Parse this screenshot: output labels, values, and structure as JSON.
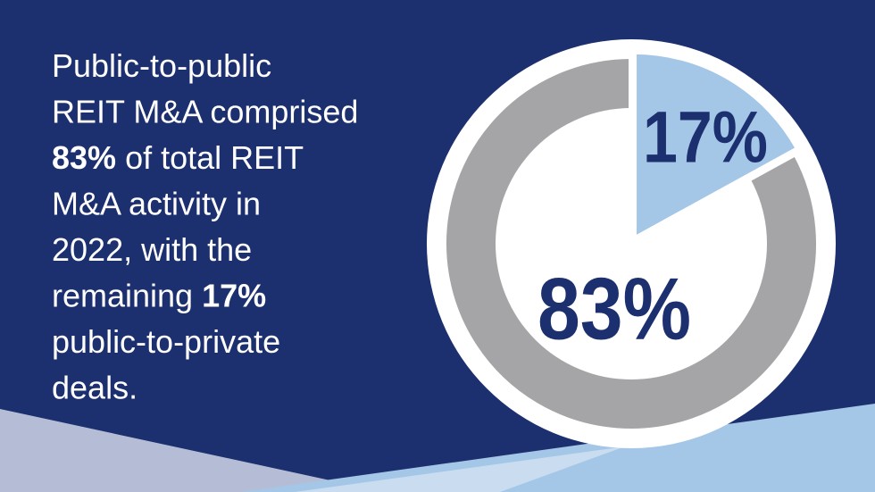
{
  "chart_data": {
    "type": "pie",
    "text_lines": [
      [
        {
          "text": "Public-to-public",
          "bold": false
        }
      ],
      [
        {
          "text": "REIT M&A comprised",
          "bold": false
        }
      ],
      [
        {
          "text": "83%",
          "bold": true
        },
        {
          "text": " of total REIT",
          "bold": false
        }
      ],
      [
        {
          "text": "M&A activity in",
          "bold": false
        }
      ],
      [
        {
          "text": "2022, with the",
          "bold": false
        }
      ],
      [
        {
          "text": "remaining ",
          "bold": false
        },
        {
          "text": "17%",
          "bold": true
        }
      ],
      [
        {
          "text": "public-to-private",
          "bold": false
        }
      ],
      [
        {
          "text": "deals.",
          "bold": false
        }
      ]
    ],
    "values": [
      17,
      83
    ],
    "value_labels": [
      "17%",
      "83%"
    ],
    "colors": [
      "#a4c6e7",
      "#a5a5a7"
    ],
    "label_color": "#1c2f6e"
  }
}
